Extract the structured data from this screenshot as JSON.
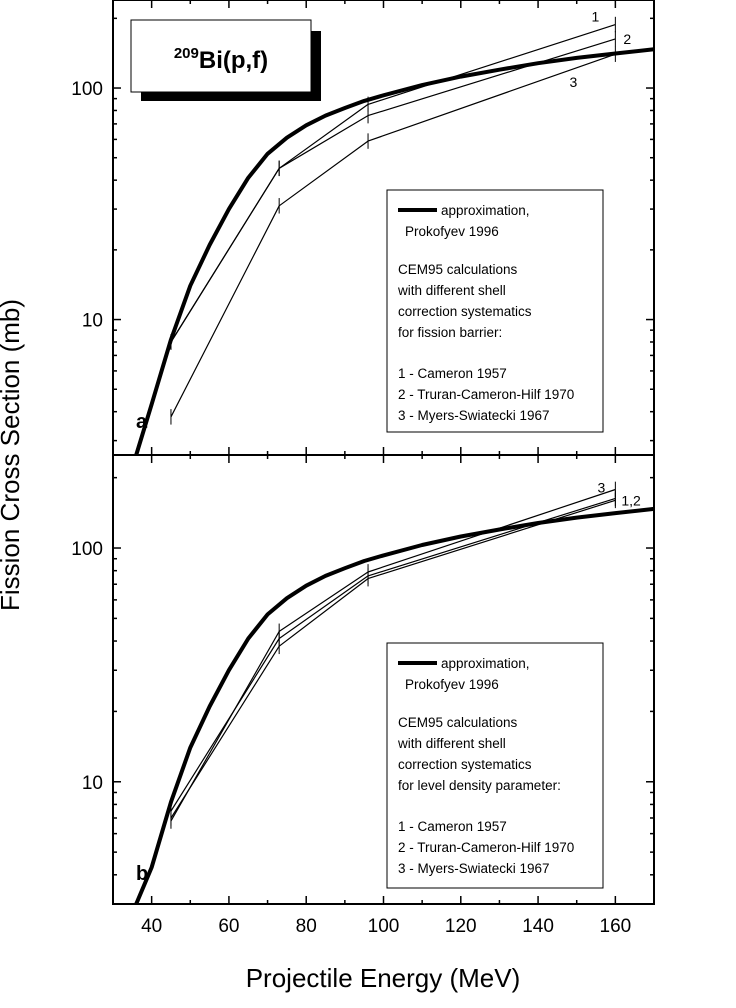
{
  "figure_title": {
    "superscript": "209",
    "text": "Bi(p,f)"
  },
  "chart_data": [
    {
      "type": "line",
      "panel_label": "a",
      "xlabel": "Projectile Energy (MeV)",
      "ylabel": "Fission Cross Section (mb)",
      "y_scale": "log",
      "xlim": [
        30,
        170
      ],
      "ylim": [
        2.6,
        240
      ],
      "x_ticks": [
        40,
        60,
        80,
        100,
        120,
        140,
        160
      ],
      "y_ticks": [
        10,
        100
      ],
      "series": [
        {
          "name": "approximation, Prokofyev 1996",
          "style": "thick",
          "points": [
            [
              36,
              2.6
            ],
            [
              40,
              4.3
            ],
            [
              45,
              8.2
            ],
            [
              50,
              14
            ],
            [
              55,
              21
            ],
            [
              60,
              30
            ],
            [
              65,
              41
            ],
            [
              70,
              52
            ],
            [
              75,
              61
            ],
            [
              80,
              69
            ],
            [
              85,
              76
            ],
            [
              90,
              82
            ],
            [
              95,
              88
            ],
            [
              100,
              93
            ],
            [
              110,
              103
            ],
            [
              120,
              112
            ],
            [
              130,
              120
            ],
            [
              140,
              128
            ],
            [
              150,
              135
            ],
            [
              160,
              141
            ],
            [
              170,
              147
            ]
          ]
        },
        {
          "name": "1 - Cameron 1957",
          "label": "1",
          "style": "thin",
          "points": [
            [
              45,
              8.0
            ],
            [
              73,
              45
            ],
            [
              96,
              85
            ],
            [
              160,
              188
            ]
          ]
        },
        {
          "name": "2 - Truran-Cameron-Hilf 1970",
          "label": "2",
          "style": "thin",
          "points": [
            [
              45,
              8.0
            ],
            [
              73,
              45
            ],
            [
              96,
              76
            ],
            [
              160,
              163
            ]
          ]
        },
        {
          "name": "3 - Myers-Swiatecki 1967",
          "label": "3",
          "style": "thin",
          "points": [
            [
              45,
              3.8
            ],
            [
              73,
              31
            ],
            [
              96,
              59
            ],
            [
              160,
              140
            ]
          ]
        }
      ],
      "legend": {
        "placement": "center-right",
        "approx_line1": "approximation,",
        "approx_line2": "Prokofyev 1996",
        "text_lines": [
          "CEM95 calculations",
          "with different shell",
          "correction systematics",
          "for fission barrier:"
        ],
        "entries": [
          "1 - Cameron 1957",
          "2 - Truran-Cameron-Hilf 1970",
          "3 - Myers-Swiatecki 1967"
        ]
      }
    },
    {
      "type": "line",
      "panel_label": "b",
      "xlabel": "Projectile Energy (MeV)",
      "ylabel": "Fission Cross Section (mb)",
      "y_scale": "log",
      "xlim": [
        30,
        170
      ],
      "ylim": [
        3,
        250
      ],
      "x_ticks": [
        40,
        60,
        80,
        100,
        120,
        140,
        160
      ],
      "y_ticks": [
        10,
        100
      ],
      "series": [
        {
          "name": "approximation, Prokofyev 1996",
          "style": "thick",
          "points": [
            [
              36,
              3.0
            ],
            [
              40,
              4.3
            ],
            [
              45,
              8.2
            ],
            [
              50,
              14
            ],
            [
              55,
              21
            ],
            [
              60,
              30
            ],
            [
              65,
              41
            ],
            [
              70,
              52
            ],
            [
              75,
              61
            ],
            [
              80,
              69
            ],
            [
              85,
              76
            ],
            [
              90,
              82
            ],
            [
              95,
              88
            ],
            [
              100,
              93
            ],
            [
              110,
              103
            ],
            [
              120,
              112
            ],
            [
              130,
              120
            ],
            [
              140,
              128
            ],
            [
              150,
              135
            ],
            [
              160,
              141
            ],
            [
              170,
              147
            ]
          ]
        },
        {
          "name": "1 - Cameron 1957",
          "label": "1,2",
          "style": "thin",
          "points": [
            [
              45,
              7.5
            ],
            [
              73,
              41
            ],
            [
              96,
              76
            ],
            [
              160,
              163
            ]
          ]
        },
        {
          "name": "2 - Truran-Cameron-Hilf 1970",
          "label": "",
          "style": "thin",
          "points": [
            [
              45,
              7.0
            ],
            [
              73,
              38
            ],
            [
              96,
              74
            ],
            [
              160,
              160
            ]
          ]
        },
        {
          "name": "3 - Myers-Swiatecki 1967",
          "label": "3",
          "style": "thin",
          "points": [
            [
              45,
              6.8
            ],
            [
              73,
              44
            ],
            [
              96,
              79
            ],
            [
              160,
              178
            ]
          ]
        }
      ],
      "legend": {
        "placement": "center-right",
        "approx_line1": "approximation,",
        "approx_line2": "Prokofyev 1996",
        "text_lines": [
          "CEM95 calculations",
          "with different shell",
          "correction systematics",
          "for level density parameter:"
        ],
        "entries": [
          "1 - Cameron 1957",
          "2 - Truran-Cameron-Hilf 1970",
          "3 - Myers-Swiatecki 1967"
        ]
      }
    }
  ]
}
